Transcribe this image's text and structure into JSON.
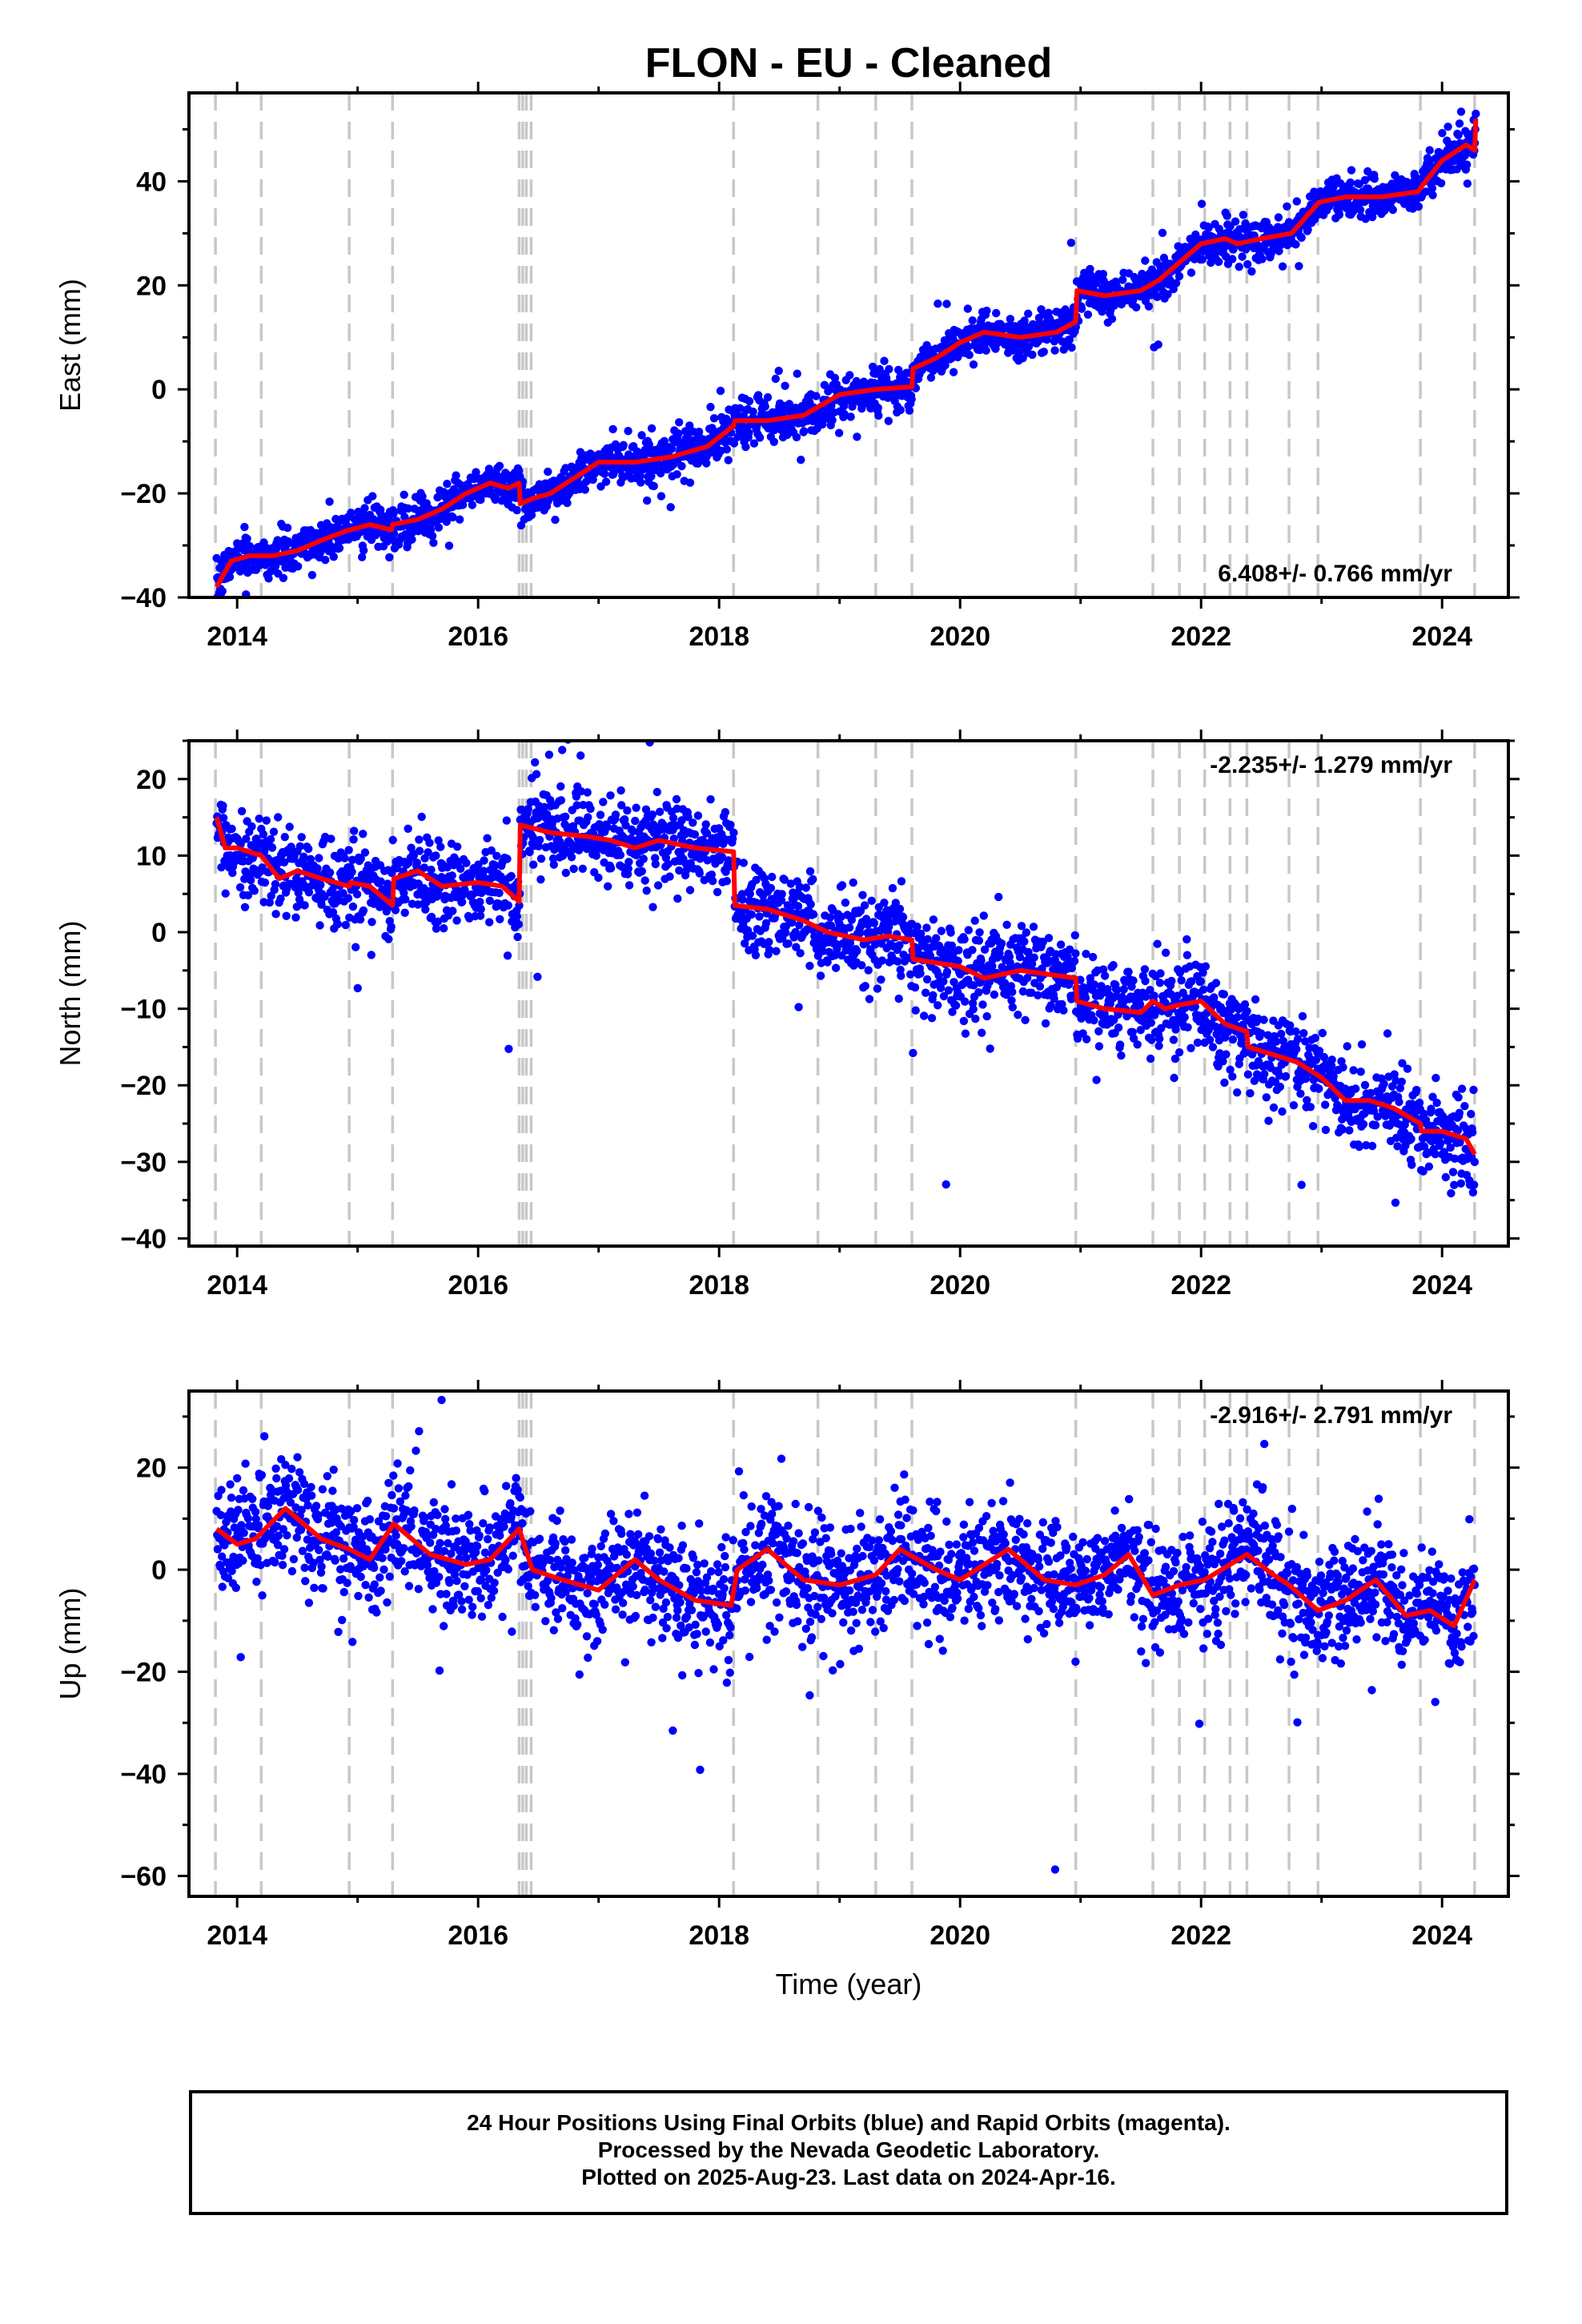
{
  "title": "FLON  - EU - Cleaned",
  "footer": {
    "line1": "24 Hour Positions Using Final Orbits (blue) and Rapid Orbits (magenta).",
    "line2": "Processed by the Nevada Geodetic Laboratory.",
    "line3": "Plotted on 2025-Aug-23. Last data on 2024-Apr-16."
  },
  "colors": {
    "points": "#0000ff",
    "model": "#ff0000",
    "breaks": "#c8c8c8",
    "axis": "#000000"
  },
  "chart_data": [
    {
      "type": "scatter",
      "name": "east",
      "ylabel": "East (mm)",
      "xlabel": "",
      "xlim": [
        2013.6,
        2024.55
      ],
      "ylim": [
        -40,
        57
      ],
      "xticks": [
        2014,
        2016,
        2018,
        2020,
        2022,
        2024
      ],
      "yticks": [
        -40,
        -20,
        0,
        20,
        40
      ],
      "rate_label": "6.408+/- 0.766 mm/yr",
      "rate_position": "bottom-right",
      "model": {
        "x": [
          2013.83,
          2013.95,
          2014.1,
          2014.3,
          2014.5,
          2014.7,
          2014.93,
          2014.94,
          2015.1,
          2015.28,
          2015.29,
          2015.5,
          2015.7,
          2015.9,
          2016.1,
          2016.25,
          2016.34,
          2016.35,
          2016.45,
          2016.6,
          2016.8,
          2017.0,
          2017.3,
          2017.6,
          2017.9,
          2018.12,
          2018.13,
          2018.4,
          2018.7,
          2019.0,
          2019.3,
          2019.6,
          2019.61,
          2019.8,
          2020.0,
          2020.2,
          2020.5,
          2020.8,
          2020.96,
          2020.97,
          2021.2,
          2021.5,
          2021.65,
          2021.8,
          2022.0,
          2022.2,
          2022.3,
          2022.5,
          2022.75,
          2022.98,
          2023.2,
          2023.5,
          2023.8,
          2023.83,
          2024.0,
          2024.2,
          2024.27,
          2024.28
        ],
        "y": [
          -38,
          -33,
          -32,
          -32,
          -31,
          -29,
          -27,
          -27,
          -26,
          -27,
          -26,
          -25,
          -23,
          -20,
          -18,
          -19,
          -18,
          -22,
          -21,
          -20,
          -17,
          -14,
          -14,
          -13,
          -11,
          -7,
          -6,
          -6,
          -5,
          -1,
          0,
          0.5,
          4,
          6,
          9,
          11,
          10,
          11,
          13,
          19,
          18,
          19,
          21,
          24,
          28,
          29,
          28,
          29,
          30,
          36,
          37,
          37,
          38,
          39,
          44,
          47,
          46,
          52
        ]
      },
      "breaks": [
        2013.82,
        2014.2,
        2014.93,
        2015.29,
        2016.34,
        2016.37,
        2016.4,
        2016.44,
        2018.12,
        2018.82,
        2019.3,
        2019.6,
        2020.96,
        2021.6,
        2021.82,
        2022.03,
        2022.24,
        2022.38,
        2022.73,
        2022.97,
        2023.82,
        2024.27
      ],
      "noise_sd": 2.0
    },
    {
      "type": "scatter",
      "name": "north",
      "ylabel": "North (mm)",
      "xlabel": "",
      "xlim": [
        2013.6,
        2024.55
      ],
      "ylim": [
        -41,
        25
      ],
      "xticks": [
        2014,
        2016,
        2018,
        2020,
        2022,
        2024
      ],
      "yticks": [
        -40,
        -30,
        -20,
        -10,
        0,
        10,
        20
      ],
      "rate_label": "-2.235+/- 1.279 mm/yr",
      "rate_position": "top-right",
      "model": {
        "x": [
          2013.83,
          2013.9,
          2014.0,
          2014.2,
          2014.35,
          2014.5,
          2014.7,
          2014.93,
          2014.94,
          2015.1,
          2015.29,
          2015.3,
          2015.5,
          2015.7,
          2016.0,
          2016.2,
          2016.34,
          2016.35,
          2016.6,
          2016.9,
          2017.1,
          2017.3,
          2017.5,
          2017.8,
          2018.12,
          2018.13,
          2018.4,
          2018.7,
          2018.9,
          2019.2,
          2019.4,
          2019.6,
          2019.61,
          2019.8,
          2020.0,
          2020.2,
          2020.5,
          2020.96,
          2020.97,
          2021.2,
          2021.5,
          2021.6,
          2021.7,
          2021.82,
          2022.0,
          2022.2,
          2022.38,
          2022.39,
          2022.6,
          2022.8,
          2023.0,
          2023.2,
          2023.4,
          2023.6,
          2023.82,
          2023.83,
          2024.0,
          2024.2,
          2024.27
        ],
        "y": [
          15,
          11,
          11,
          10,
          7,
          8,
          7,
          6,
          6.5,
          6,
          3.5,
          7,
          8,
          6,
          6.5,
          6,
          4,
          14,
          13,
          12.5,
          12,
          11,
          12,
          11,
          10.5,
          3.5,
          3,
          1.5,
          0,
          -1,
          -0.5,
          -1,
          -3.5,
          -4,
          -4.5,
          -6,
          -5,
          -6,
          -9,
          -10,
          -10.5,
          -9,
          -10,
          -9.5,
          -9,
          -12,
          -13,
          -15,
          -16,
          -17,
          -19,
          -22,
          -22,
          -23,
          -25,
          -26,
          -26,
          -27,
          -29
        ]
      },
      "breaks": [
        2013.82,
        2014.2,
        2014.93,
        2015.29,
        2016.34,
        2016.37,
        2016.4,
        2016.44,
        2018.12,
        2018.82,
        2019.3,
        2019.6,
        2020.96,
        2021.6,
        2021.82,
        2022.03,
        2022.24,
        2022.38,
        2022.73,
        2022.97,
        2023.82,
        2024.27
      ],
      "noise_sd": 2.8
    },
    {
      "type": "scatter",
      "name": "up",
      "ylabel": "Up (mm)",
      "xlabel": "Time (year)",
      "xlim": [
        2013.6,
        2024.55
      ],
      "ylim": [
        -64,
        35
      ],
      "xticks": [
        2014,
        2016,
        2018,
        2020,
        2022,
        2024
      ],
      "yticks": [
        -60,
        -40,
        -20,
        0,
        20
      ],
      "rate_label": "-2.916+/- 2.791 mm/yr",
      "rate_position": "top-right",
      "model": {
        "x": [
          2013.83,
          2014.0,
          2014.15,
          2014.4,
          2014.7,
          2014.93,
          2015.1,
          2015.3,
          2015.6,
          2015.9,
          2016.1,
          2016.34,
          2016.45,
          2016.7,
          2017.0,
          2017.3,
          2017.5,
          2017.8,
          2018.1,
          2018.15,
          2018.4,
          2018.7,
          2019.0,
          2019.3,
          2019.5,
          2019.8,
          2020.0,
          2020.4,
          2020.7,
          2020.96,
          2021.2,
          2021.4,
          2021.6,
          2021.82,
          2022.03,
          2022.24,
          2022.38,
          2022.6,
          2022.73,
          2022.97,
          2023.2,
          2023.45,
          2023.7,
          2023.9,
          2024.1,
          2024.27
        ],
        "y": [
          8,
          5,
          6,
          12,
          6,
          4,
          2,
          9,
          3,
          1,
          2,
          8,
          0,
          -2,
          -4,
          2,
          -2,
          -6,
          -7,
          0,
          4,
          -2,
          -3,
          -1,
          4,
          0,
          -2,
          4,
          -2,
          -3,
          -1,
          3,
          -5,
          -3,
          -2,
          1,
          3,
          -1,
          -3,
          -8,
          -6,
          -2,
          -9,
          -8,
          -11,
          -2
        ]
      },
      "breaks": [
        2013.82,
        2014.2,
        2014.93,
        2015.29,
        2016.34,
        2016.37,
        2016.4,
        2016.44,
        2018.12,
        2018.82,
        2019.3,
        2019.6,
        2020.96,
        2021.6,
        2021.82,
        2022.03,
        2022.24,
        2022.38,
        2022.73,
        2022.97,
        2023.82,
        2024.27
      ],
      "noise_sd": 5.5
    }
  ]
}
